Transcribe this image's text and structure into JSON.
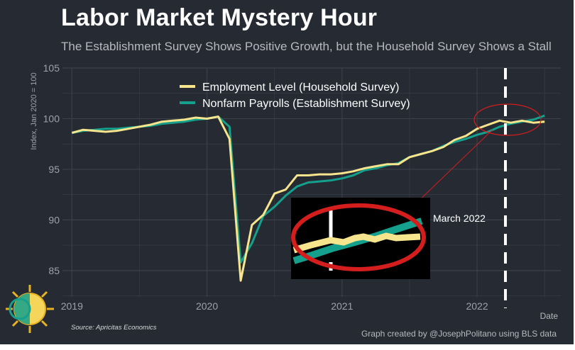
{
  "header": {
    "title": "Labor Market Mystery Hour",
    "subtitle": "The Establishment Survey Shows Positive Growth, but the Household Survey Shows a Stall"
  },
  "footer": {
    "source": "Source: Apricitas Economics",
    "credit": "Graph created by @JosephPolitano using BLS data"
  },
  "annotation": {
    "inset_label": "March 2022"
  },
  "colors": {
    "background": "#252a33",
    "grid": "#3b4049",
    "household": "#f6e58c",
    "establishment": "#14a08c",
    "annotation": "#d41e1e",
    "marker": "#ffffff"
  },
  "logo": {
    "icon": "sun-logo-icon"
  },
  "chart_data": {
    "type": "line",
    "title": "Labor Market Mystery Hour",
    "subtitle": "The Establishment Survey Shows Positive Growth, but the Household Survey Shows a Stall",
    "xlabel": "Date",
    "ylabel": "Index, Jan 2020 = 100",
    "xlim": [
      2018.93,
      2022.62
    ],
    "ylim": [
      82.4,
      105
    ],
    "yticks": [
      85,
      90,
      95,
      100,
      105
    ],
    "xticks": [
      2019,
      2020,
      2021,
      2022
    ],
    "grid": true,
    "legend_position": "top-center",
    "vline": {
      "x": 2022.21,
      "style": "dashed"
    },
    "series": [
      {
        "name": "Employment Level (Household Survey)",
        "x": [
          2019.0,
          2019.083,
          2019.167,
          2019.25,
          2019.333,
          2019.417,
          2019.5,
          2019.583,
          2019.667,
          2019.75,
          2019.833,
          2019.917,
          2020.0,
          2020.083,
          2020.167,
          2020.25,
          2020.333,
          2020.417,
          2020.5,
          2020.583,
          2020.667,
          2020.75,
          2020.833,
          2020.917,
          2021.0,
          2021.083,
          2021.167,
          2021.25,
          2021.333,
          2021.417,
          2021.5,
          2021.583,
          2021.667,
          2021.75,
          2021.833,
          2021.917,
          2022.0,
          2022.083,
          2022.167,
          2022.25,
          2022.333,
          2022.417,
          2022.5
        ],
        "values": [
          98.6,
          98.9,
          98.8,
          98.7,
          98.8,
          99.0,
          99.2,
          99.4,
          99.7,
          99.8,
          99.9,
          100.1,
          100.0,
          100.2,
          98.0,
          84.0,
          89.5,
          90.5,
          92.6,
          93.0,
          94.4,
          94.4,
          94.5,
          94.5,
          94.6,
          94.8,
          95.1,
          95.3,
          95.5,
          95.5,
          96.2,
          96.5,
          96.8,
          97.2,
          97.9,
          98.3,
          99.0,
          99.4,
          99.8,
          99.6,
          99.8,
          99.6,
          99.7
        ]
      },
      {
        "name": "Nonfarm Payrolls (Establishment Survey)",
        "x": [
          2019.0,
          2019.083,
          2019.167,
          2019.25,
          2019.333,
          2019.417,
          2019.5,
          2019.583,
          2019.667,
          2019.75,
          2019.833,
          2019.917,
          2020.0,
          2020.083,
          2020.167,
          2020.25,
          2020.333,
          2020.417,
          2020.5,
          2020.583,
          2020.667,
          2020.75,
          2020.833,
          2020.917,
          2021.0,
          2021.083,
          2021.167,
          2021.25,
          2021.333,
          2021.417,
          2021.5,
          2021.583,
          2021.667,
          2021.75,
          2021.833,
          2021.917,
          2022.0,
          2022.083,
          2022.167,
          2022.25,
          2022.333,
          2022.417,
          2022.5
        ],
        "values": [
          98.6,
          98.8,
          98.9,
          99.0,
          99.0,
          99.1,
          99.2,
          99.3,
          99.5,
          99.6,
          99.7,
          99.9,
          100.0,
          100.2,
          99.2,
          85.8,
          87.7,
          90.4,
          91.3,
          92.4,
          93.3,
          93.7,
          93.8,
          93.9,
          94.1,
          94.4,
          94.9,
          95.1,
          95.4,
          95.6,
          96.2,
          96.5,
          96.8,
          97.3,
          97.7,
          98.0,
          98.4,
          98.7,
          99.2,
          99.5,
          99.7,
          99.9,
          100.3
        ]
      }
    ]
  }
}
